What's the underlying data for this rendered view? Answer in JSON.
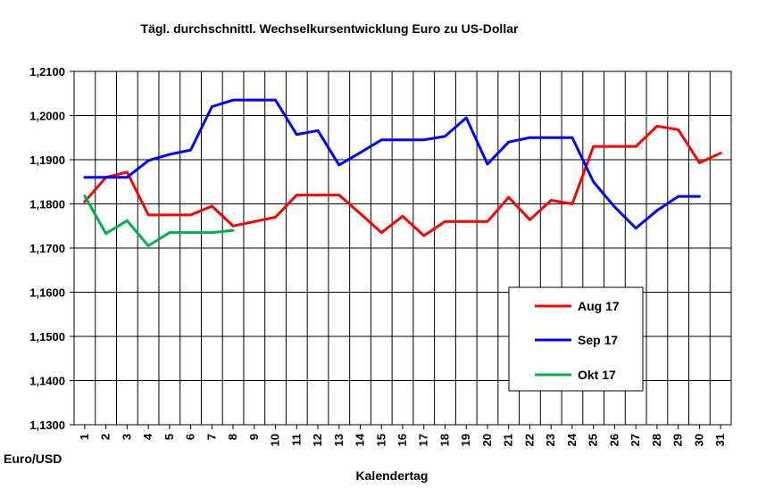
{
  "chart_data": {
    "type": "line",
    "title": "Tägl. durchschnittl. Wechselkursentwicklung  Euro zu US-Dollar",
    "xlabel": "Kalendertag",
    "ylabel": "Euro/USD",
    "x": [
      "1",
      "2",
      "3",
      "4",
      "5",
      "6",
      "7",
      "8",
      "9",
      "10",
      "11",
      "12",
      "13",
      "14",
      "15",
      "16",
      "17",
      "18",
      "19",
      "20",
      "21",
      "22",
      "23",
      "24",
      "25",
      "26",
      "27",
      "28",
      "29",
      "30",
      "31"
    ],
    "ylim": [
      1.13,
      1.21
    ],
    "yticks": [
      "1,1300",
      "1,1400",
      "1,1500",
      "1,1600",
      "1,1700",
      "1,1800",
      "1,1900",
      "1,2000",
      "1,2100"
    ],
    "ytick_values": [
      1.13,
      1.14,
      1.15,
      1.16,
      1.17,
      1.18,
      1.19,
      1.2,
      1.21
    ],
    "grid": true,
    "legend_position": "lower-right",
    "series": [
      {
        "name": "Aug 17",
        "color": "#ff0000",
        "values": [
          1.1805,
          1.186,
          1.1872,
          1.1775,
          1.1775,
          1.1775,
          1.1795,
          1.175,
          1.176,
          1.177,
          1.182,
          1.182,
          1.182,
          1.1778,
          1.1735,
          1.1772,
          1.1728,
          1.176,
          1.176,
          1.176,
          1.1815,
          1.1764,
          1.1808,
          1.18,
          1.193,
          1.193,
          1.193,
          1.1976,
          1.1968,
          1.1893,
          1.1915
        ]
      },
      {
        "name": "Sep 17",
        "color": "#0000ff",
        "values": [
          1.186,
          1.186,
          1.186,
          1.1898,
          1.1912,
          1.1922,
          1.202,
          1.2035,
          1.2035,
          1.2035,
          1.1957,
          1.1966,
          1.1888,
          1.1916,
          1.1945,
          1.1945,
          1.1945,
          1.1953,
          1.1995,
          1.189,
          1.194,
          1.195,
          1.195,
          1.195,
          1.185,
          1.1793,
          1.1745,
          1.1785,
          1.1817,
          1.1817,
          null
        ]
      },
      {
        "name": "Okt 17",
        "color": "#00b050",
        "values": [
          1.1818,
          1.1733,
          1.1762,
          1.1705,
          1.1735,
          1.1735,
          1.1735,
          1.174,
          null,
          null,
          null,
          null,
          null,
          null,
          null,
          null,
          null,
          null,
          null,
          null,
          null,
          null,
          null,
          null,
          null,
          null,
          null,
          null,
          null,
          null,
          null
        ]
      }
    ]
  }
}
